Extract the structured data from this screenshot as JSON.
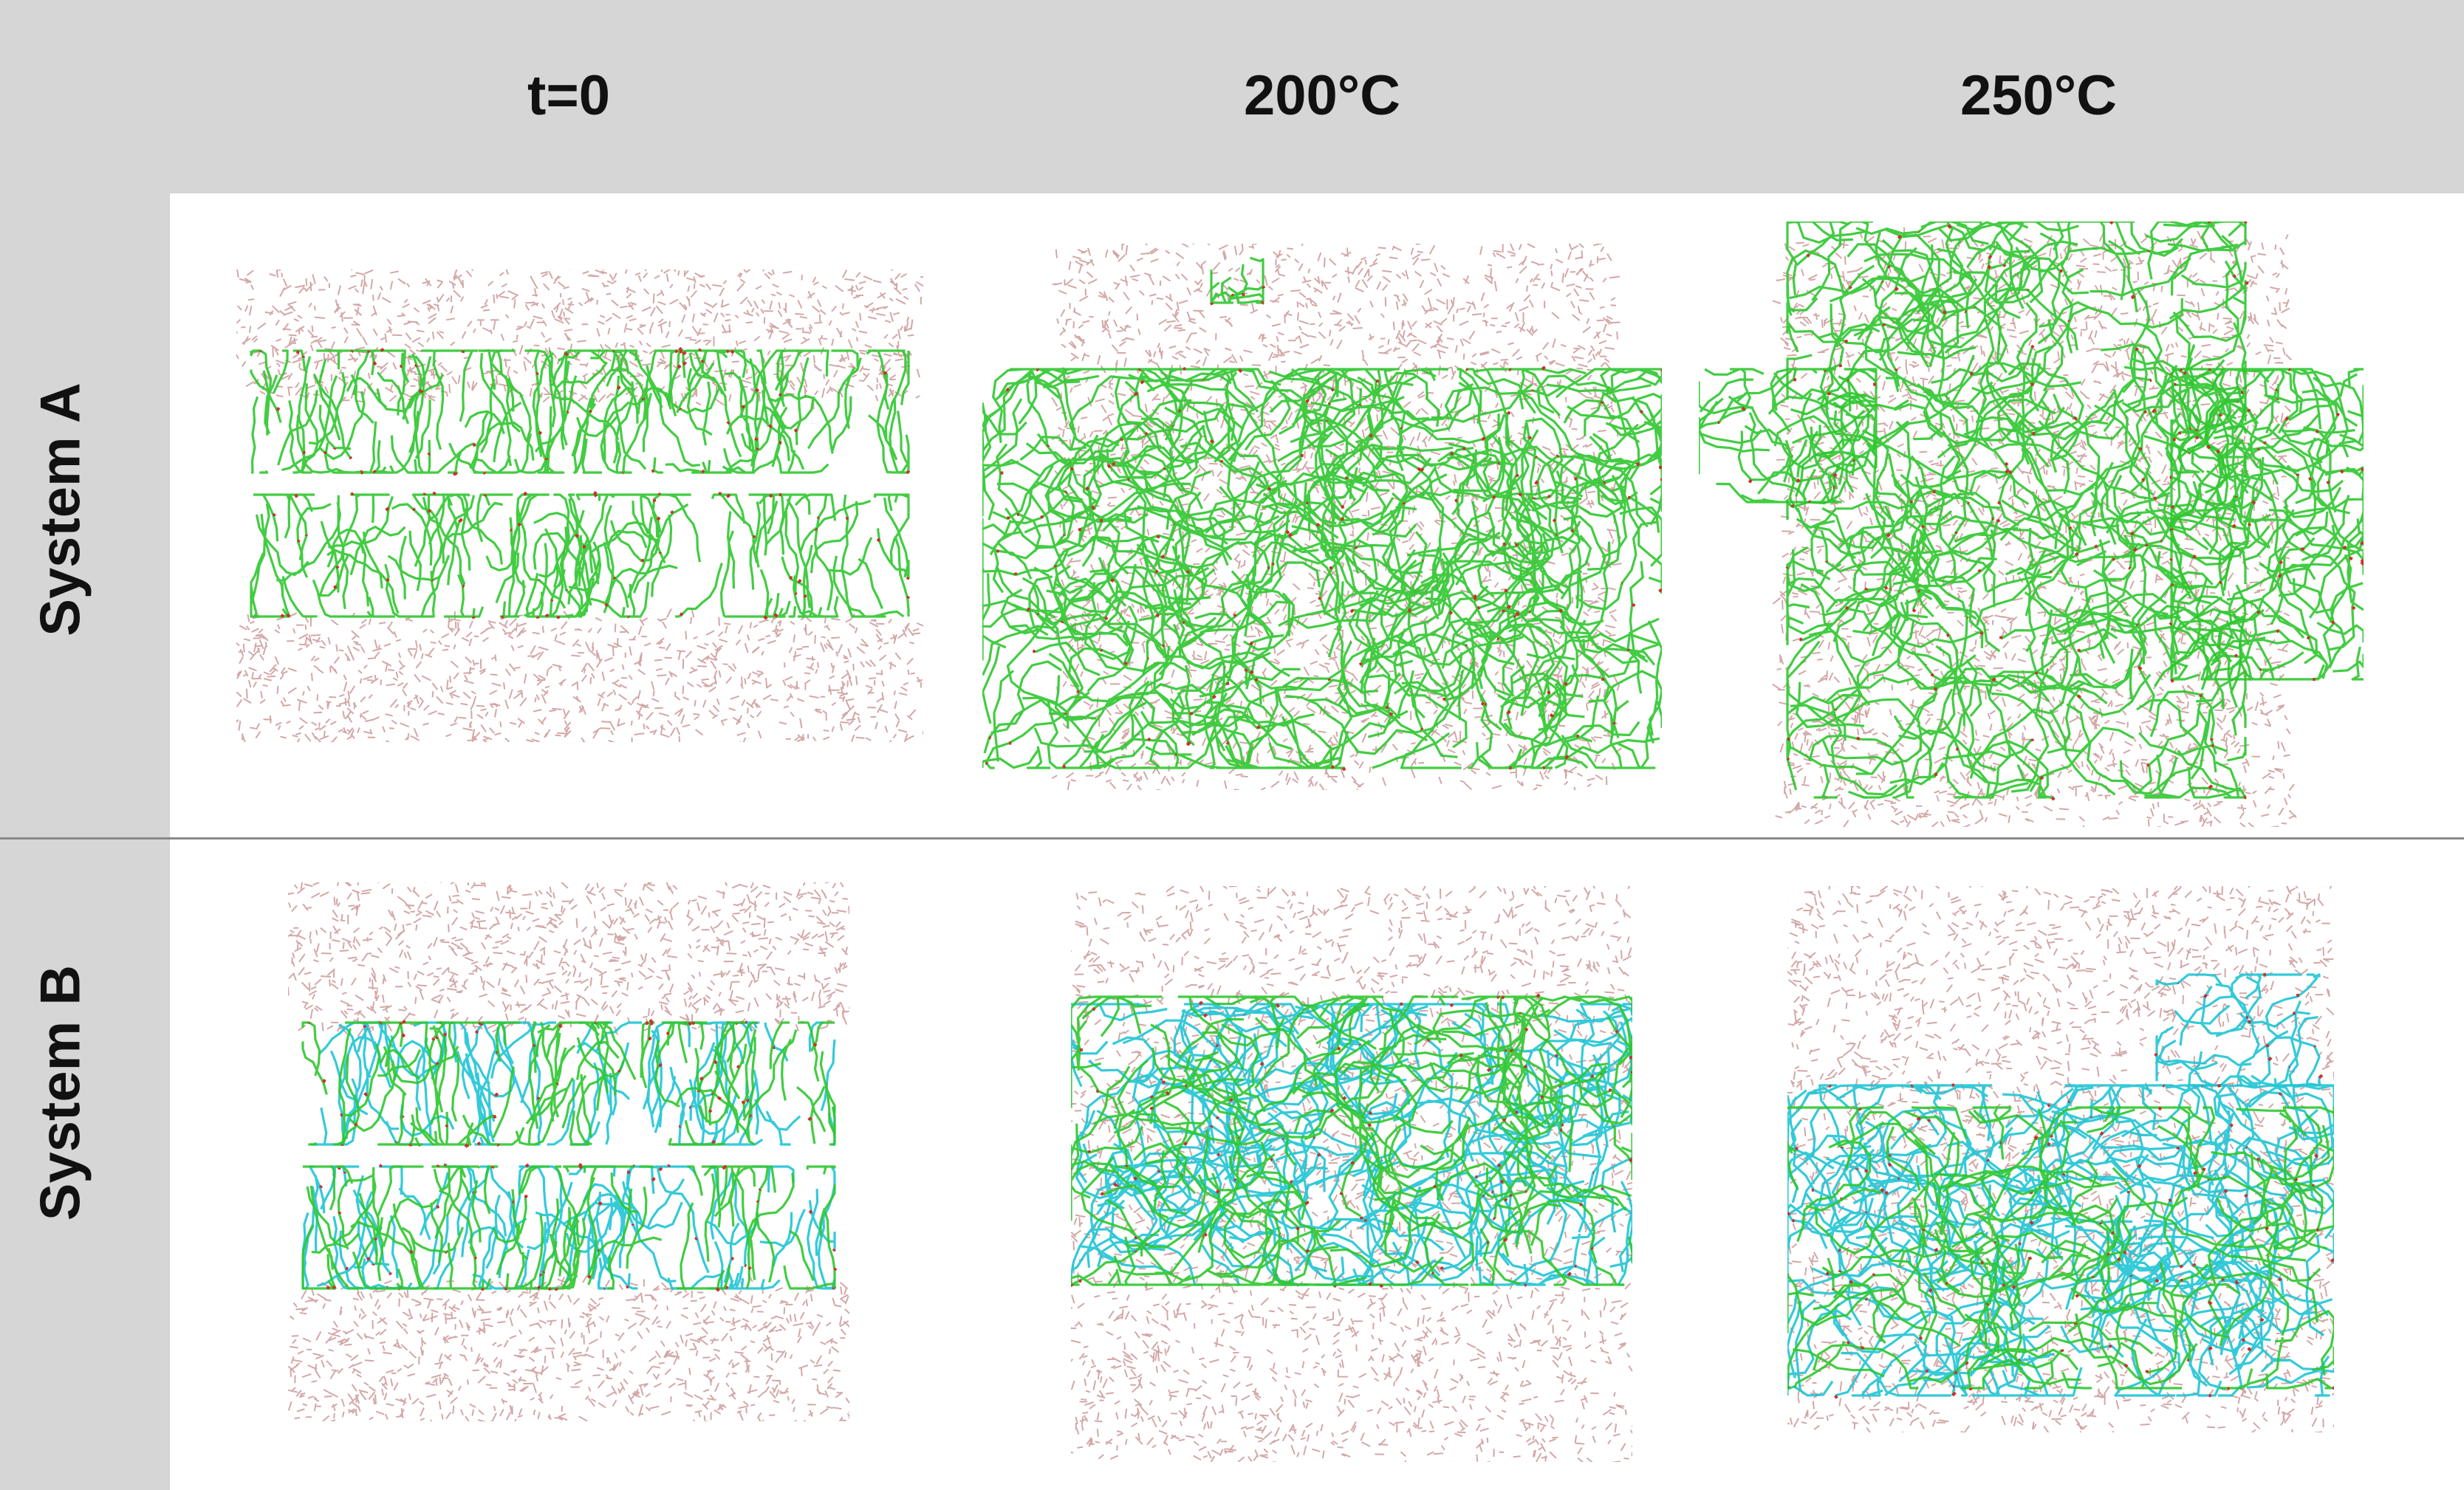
{
  "columns": [
    "t=0",
    "200°C",
    "250°C"
  ],
  "rows": [
    "System A",
    "System B"
  ],
  "colors": {
    "header_background": "#d6d6d6",
    "water": "#c48a8a",
    "lipid_green": "#2fc72f",
    "lipid_cyan": "#1fc4d4",
    "oxygen_red": "#cc2f2f"
  }
}
